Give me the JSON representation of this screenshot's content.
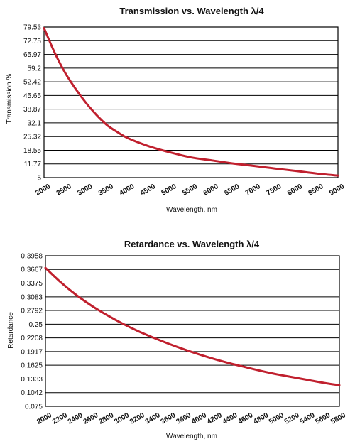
{
  "chart_data": [
    {
      "type": "line",
      "title": "Transmission vs. Wavelength λ/4",
      "xlabel": "Wavelength, nm",
      "ylabel": "Transmission %",
      "xlim": [
        2000,
        9000
      ],
      "ylim": [
        5,
        79.53
      ],
      "x_ticks": [
        "2000",
        "2500",
        "3000",
        "3500",
        "4000",
        "4500",
        "5000",
        "5500",
        "6000",
        "6500",
        "7000",
        "7500",
        "8000",
        "8500",
        "9000"
      ],
      "y_ticks": [
        "79.53",
        "72.75",
        "65.97",
        "59.2",
        "52.42",
        "45.65",
        "38.87",
        "32.1",
        "25.32",
        "18.55",
        "11.77",
        "5"
      ],
      "grid": true,
      "series": [
        {
          "x": [
            2000,
            2250,
            2500,
            2750,
            3000,
            3250,
            3500,
            3750,
            4000,
            4500,
            5000,
            5500,
            6000,
            6500,
            7000,
            7500,
            8000,
            8500,
            9000
          ],
          "y": [
            79.0,
            67.0,
            57.0,
            49.0,
            42.0,
            36.0,
            31.0,
            27.5,
            24.5,
            20.5,
            17.5,
            15.0,
            13.5,
            12.0,
            10.8,
            9.5,
            8.3,
            7.0,
            6.0
          ]
        }
      ]
    },
    {
      "type": "line",
      "title": "Retardance vs. Wavelength λ/4",
      "xlabel": "Wavelength, nm",
      "ylabel": "Retardance",
      "xlim": [
        2000,
        5800
      ],
      "ylim": [
        0.075,
        0.3958
      ],
      "x_ticks": [
        "2000",
        "2200",
        "2400",
        "2600",
        "2800",
        "3000",
        "3200",
        "3400",
        "3600",
        "3800",
        "4000",
        "4200",
        "4400",
        "4600",
        "4800",
        "5000",
        "5200",
        "5400",
        "5600",
        "5800"
      ],
      "y_ticks": [
        "0.3958",
        "0.3667",
        "0.3375",
        "0.3083",
        "0.2792",
        "0.25",
        "0.2208",
        "0.1917",
        "0.1625",
        "0.1333",
        "0.1042",
        "0.075"
      ],
      "grid": true,
      "series": [
        {
          "x": [
            2000,
            2200,
            2400,
            2600,
            2800,
            3000,
            3200,
            3400,
            3600,
            3800,
            4000,
            4200,
            4400,
            4600,
            4800,
            5000,
            5200,
            5400,
            5600,
            5800
          ],
          "y": [
            0.37,
            0.339,
            0.312,
            0.289,
            0.269,
            0.251,
            0.235,
            0.221,
            0.208,
            0.196,
            0.185,
            0.175,
            0.166,
            0.158,
            0.15,
            0.143,
            0.137,
            0.131,
            0.125,
            0.12
          ]
        }
      ]
    }
  ]
}
